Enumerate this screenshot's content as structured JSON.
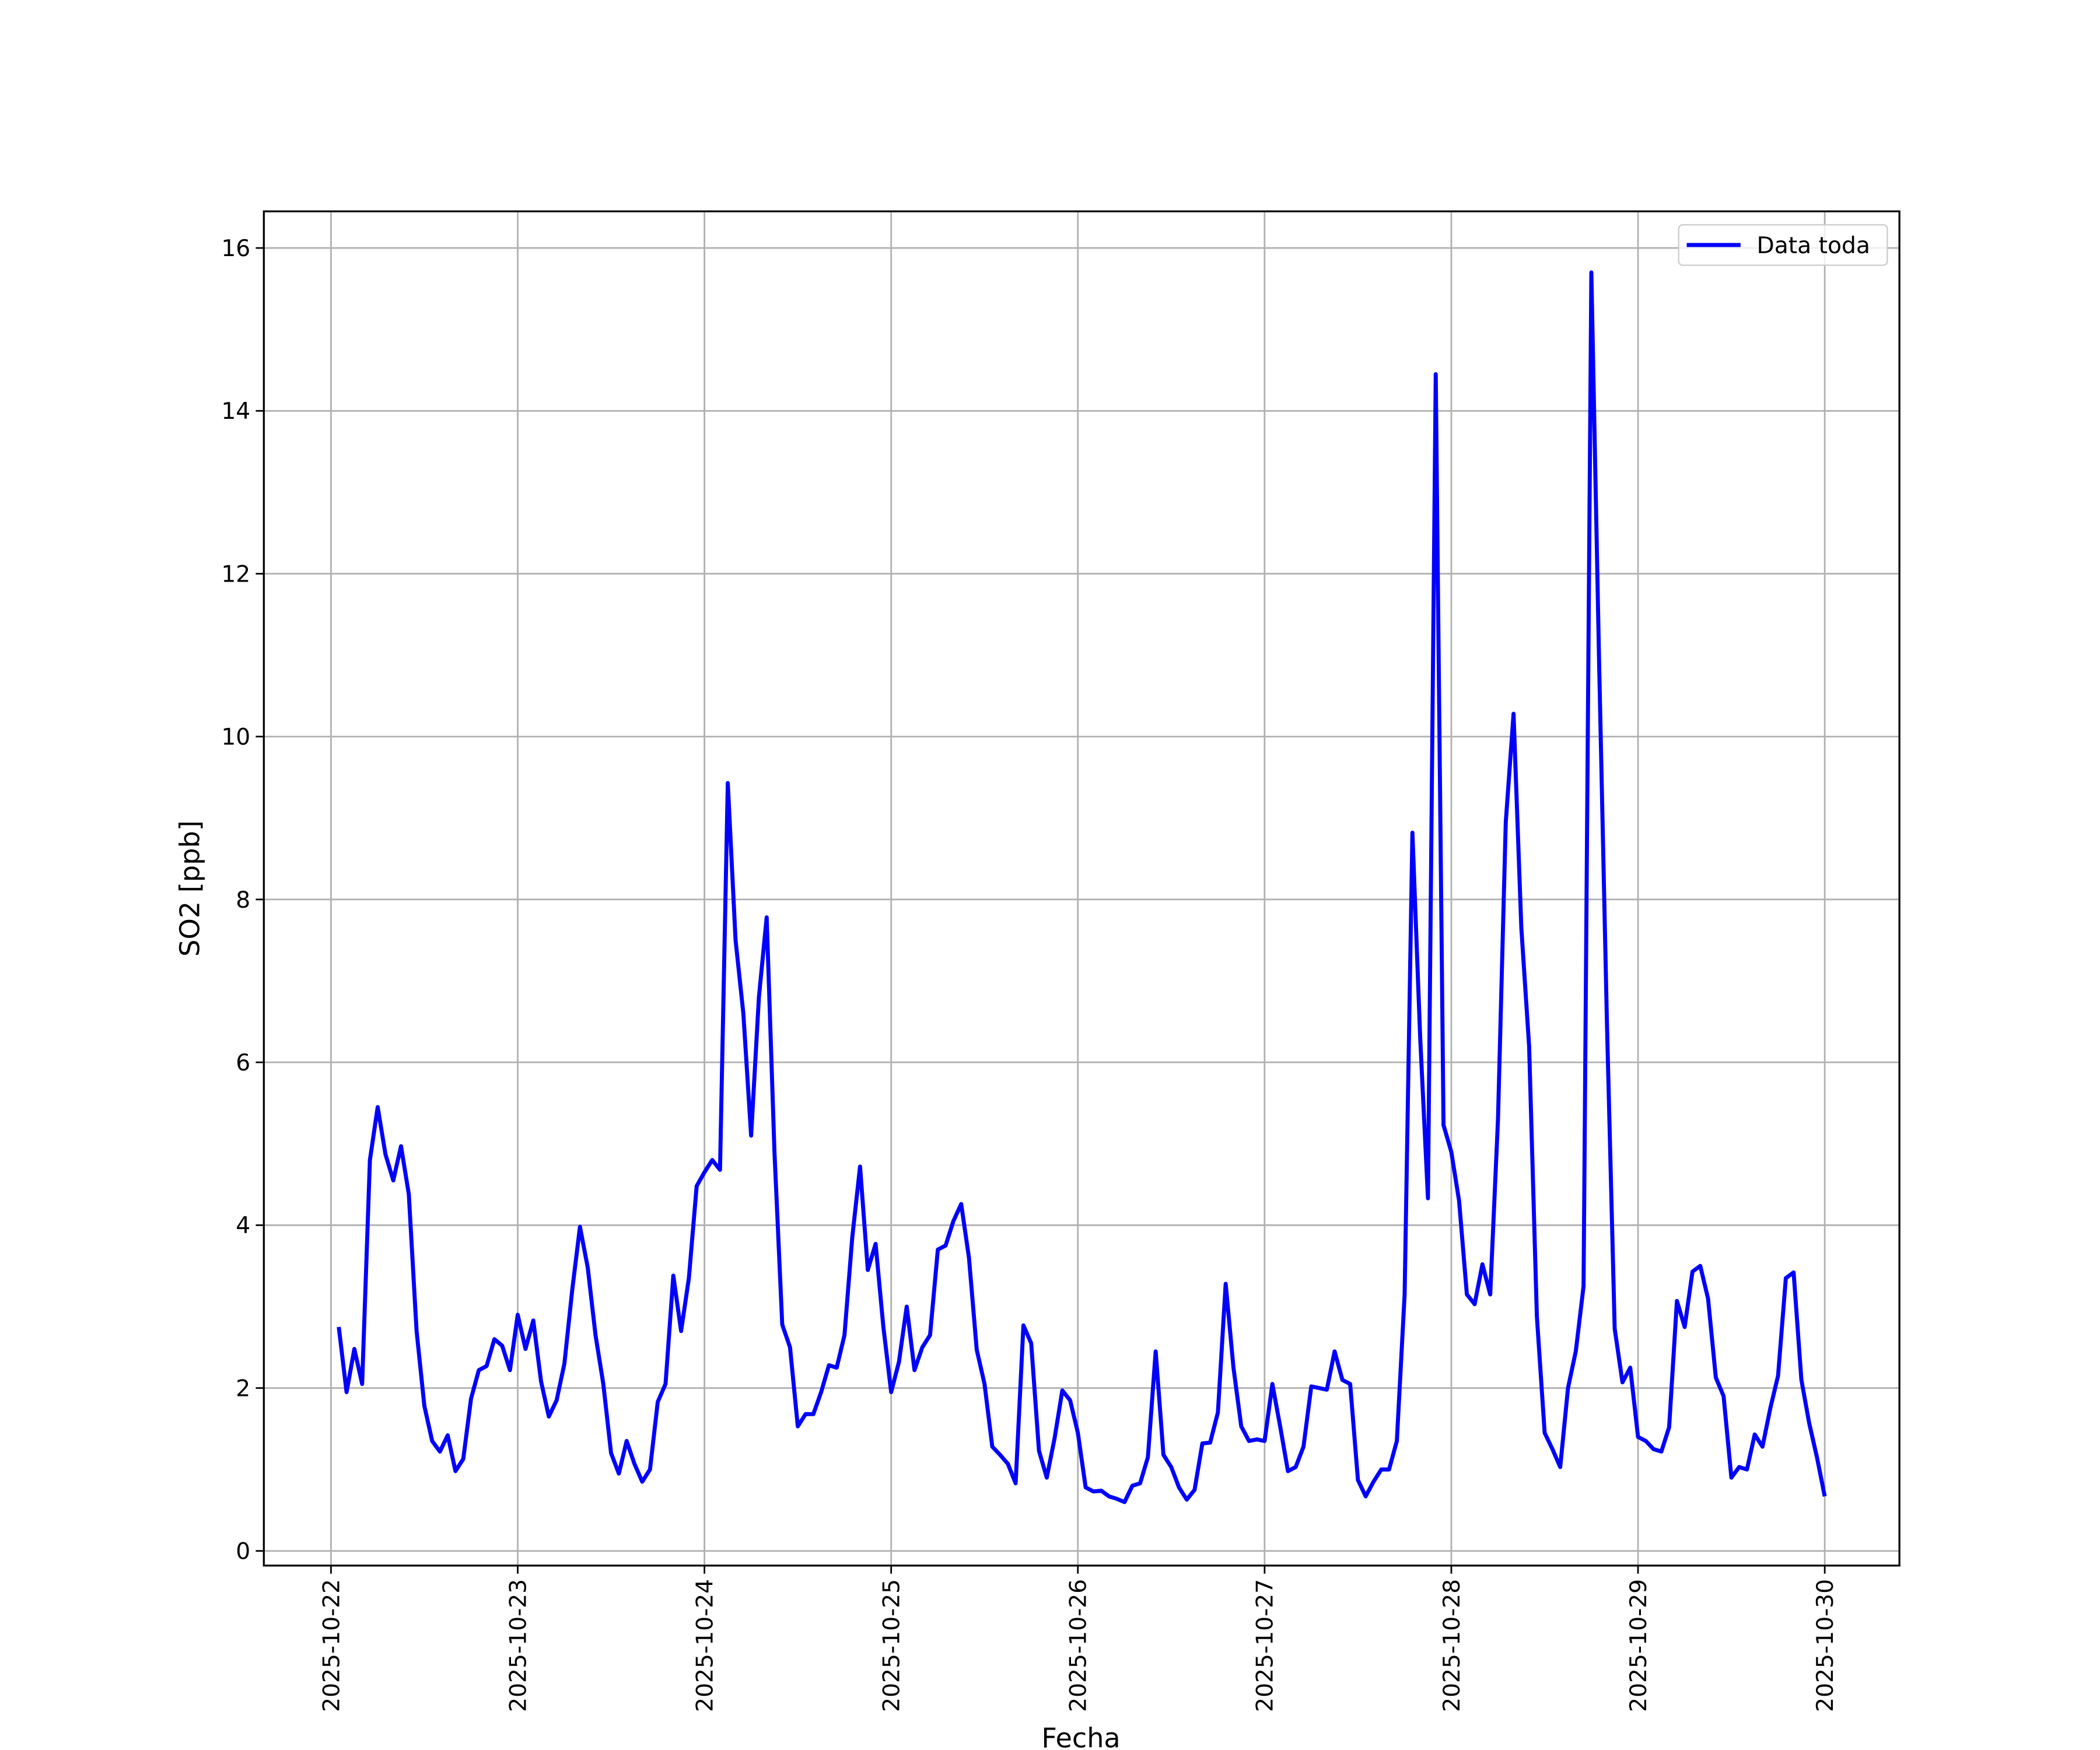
{
  "chart_data": {
    "type": "line",
    "xlabel": "Fecha",
    "ylabel": "SO2 [ppb]",
    "xlim": [
      "2025-10-21T15:22",
      "2025-10-30T09:36"
    ],
    "ylim": [
      -0.18,
      16.45
    ],
    "xticks": [
      "2025-10-22",
      "2025-10-23",
      "2025-10-24",
      "2025-10-25",
      "2025-10-26",
      "2025-10-27",
      "2025-10-28",
      "2025-10-29",
      "2025-10-30"
    ],
    "yticks": [
      0,
      2,
      4,
      6,
      8,
      10,
      12,
      14,
      16
    ],
    "grid": true,
    "legend": "upper right",
    "x": [
      "2025-10-22T01:00",
      "2025-10-22T02:00",
      "2025-10-22T03:00",
      "2025-10-22T04:00",
      "2025-10-22T05:00",
      "2025-10-22T06:00",
      "2025-10-22T07:00",
      "2025-10-22T08:00",
      "2025-10-22T09:00",
      "2025-10-22T10:00",
      "2025-10-22T11:00",
      "2025-10-22T12:00",
      "2025-10-22T13:00",
      "2025-10-22T14:00",
      "2025-10-22T15:00",
      "2025-10-22T16:00",
      "2025-10-22T17:00",
      "2025-10-22T18:00",
      "2025-10-22T19:00",
      "2025-10-22T20:00",
      "2025-10-22T21:00",
      "2025-10-22T22:00",
      "2025-10-22T23:00",
      "2025-10-23T00:00",
      "2025-10-23T01:00",
      "2025-10-23T02:00",
      "2025-10-23T03:00",
      "2025-10-23T04:00",
      "2025-10-23T05:00",
      "2025-10-23T06:00",
      "2025-10-23T07:00",
      "2025-10-23T08:00",
      "2025-10-23T09:00",
      "2025-10-23T10:00",
      "2025-10-23T11:00",
      "2025-10-23T12:00",
      "2025-10-23T13:00",
      "2025-10-23T14:00",
      "2025-10-23T15:00",
      "2025-10-23T16:00",
      "2025-10-23T17:00",
      "2025-10-23T18:00",
      "2025-10-23T19:00",
      "2025-10-23T20:00",
      "2025-10-23T21:00",
      "2025-10-23T22:00",
      "2025-10-23T23:00",
      "2025-10-24T00:00",
      "2025-10-24T01:00",
      "2025-10-24T02:00",
      "2025-10-24T03:00",
      "2025-10-24T04:00",
      "2025-10-24T05:00",
      "2025-10-24T06:00",
      "2025-10-24T07:00",
      "2025-10-24T08:00",
      "2025-10-24T09:00",
      "2025-10-24T10:00",
      "2025-10-24T11:00",
      "2025-10-24T12:00",
      "2025-10-24T13:00",
      "2025-10-24T14:00",
      "2025-10-24T15:00",
      "2025-10-24T16:00",
      "2025-10-24T17:00",
      "2025-10-24T18:00",
      "2025-10-24T19:00",
      "2025-10-24T20:00",
      "2025-10-24T21:00",
      "2025-10-24T22:00",
      "2025-10-24T23:00",
      "2025-10-25T00:00",
      "2025-10-25T01:00",
      "2025-10-25T02:00",
      "2025-10-25T03:00",
      "2025-10-25T04:00",
      "2025-10-25T05:00",
      "2025-10-25T06:00",
      "2025-10-25T07:00",
      "2025-10-25T08:00",
      "2025-10-25T09:00",
      "2025-10-25T10:00",
      "2025-10-25T11:00",
      "2025-10-25T12:00",
      "2025-10-25T13:00",
      "2025-10-25T14:00",
      "2025-10-25T15:00",
      "2025-10-25T16:00",
      "2025-10-25T17:00",
      "2025-10-25T18:00",
      "2025-10-25T19:00",
      "2025-10-25T20:00",
      "2025-10-25T21:00",
      "2025-10-25T22:00",
      "2025-10-25T23:00",
      "2025-10-26T00:00",
      "2025-10-26T01:00",
      "2025-10-26T02:00",
      "2025-10-26T03:00",
      "2025-10-26T04:00",
      "2025-10-26T05:00",
      "2025-10-26T06:00",
      "2025-10-26T07:00",
      "2025-10-26T08:00",
      "2025-10-26T09:00",
      "2025-10-26T10:00",
      "2025-10-26T11:00",
      "2025-10-26T12:00",
      "2025-10-26T13:00",
      "2025-10-26T14:00",
      "2025-10-26T15:00",
      "2025-10-26T16:00",
      "2025-10-26T17:00",
      "2025-10-26T18:00",
      "2025-10-26T19:00",
      "2025-10-26T20:00",
      "2025-10-26T21:00",
      "2025-10-26T22:00",
      "2025-10-26T23:00",
      "2025-10-27T00:00",
      "2025-10-27T01:00",
      "2025-10-27T02:00",
      "2025-10-27T03:00",
      "2025-10-27T04:00",
      "2025-10-27T05:00",
      "2025-10-27T06:00",
      "2025-10-27T07:00",
      "2025-10-27T08:00",
      "2025-10-27T09:00",
      "2025-10-27T10:00",
      "2025-10-27T11:00",
      "2025-10-27T12:00",
      "2025-10-27T13:00",
      "2025-10-27T14:00",
      "2025-10-27T15:00",
      "2025-10-27T16:00",
      "2025-10-27T17:00",
      "2025-10-27T18:00",
      "2025-10-27T19:00",
      "2025-10-27T20:00",
      "2025-10-27T21:00",
      "2025-10-27T22:00",
      "2025-10-27T23:00",
      "2025-10-28T00:00",
      "2025-10-28T01:00",
      "2025-10-28T02:00",
      "2025-10-28T03:00",
      "2025-10-28T04:00",
      "2025-10-28T05:00",
      "2025-10-28T06:00",
      "2025-10-28T07:00",
      "2025-10-28T08:00",
      "2025-10-28T09:00",
      "2025-10-28T10:00",
      "2025-10-28T11:00",
      "2025-10-28T12:00",
      "2025-10-28T13:00",
      "2025-10-28T14:00",
      "2025-10-28T15:00",
      "2025-10-28T16:00",
      "2025-10-28T17:00",
      "2025-10-28T18:00",
      "2025-10-28T19:00",
      "2025-10-28T20:00",
      "2025-10-28T21:00",
      "2025-10-28T22:00",
      "2025-10-28T23:00",
      "2025-10-29T00:00",
      "2025-10-29T01:00",
      "2025-10-29T02:00",
      "2025-10-29T03:00",
      "2025-10-29T04:00",
      "2025-10-29T05:00",
      "2025-10-29T06:00",
      "2025-10-29T07:00",
      "2025-10-29T08:00",
      "2025-10-29T09:00",
      "2025-10-29T10:00",
      "2025-10-29T11:00",
      "2025-10-29T12:00",
      "2025-10-29T13:00",
      "2025-10-29T14:00",
      "2025-10-29T15:00",
      "2025-10-29T16:00",
      "2025-10-29T17:00",
      "2025-10-29T18:00",
      "2025-10-29T19:00",
      "2025-10-29T20:00",
      "2025-10-29T21:00",
      "2025-10-29T22:00",
      "2025-10-29T23:00",
      "2025-10-30T00:00"
    ],
    "series": [
      {
        "name": "Data toda",
        "color": "#0000ff",
        "values": [
          2.75,
          1.95,
          2.48,
          2.05,
          4.8,
          5.45,
          4.87,
          4.55,
          4.97,
          4.38,
          2.7,
          1.78,
          1.35,
          1.22,
          1.42,
          0.98,
          1.13,
          1.87,
          2.22,
          2.27,
          2.6,
          2.52,
          2.22,
          2.9,
          2.48,
          2.83,
          2.08,
          1.65,
          1.85,
          2.3,
          3.2,
          3.98,
          3.48,
          2.65,
          2.05,
          1.2,
          0.95,
          1.35,
          1.07,
          0.85,
          1.0,
          1.83,
          2.05,
          3.38,
          2.7,
          3.35,
          4.48,
          4.65,
          4.8,
          4.68,
          9.43,
          7.5,
          6.6,
          5.1,
          6.8,
          7.78,
          4.9,
          2.78,
          2.5,
          1.53,
          1.68,
          1.68,
          1.95,
          2.28,
          2.25,
          2.65,
          3.85,
          4.72,
          3.45,
          3.77,
          2.75,
          1.95,
          2.32,
          3.0,
          2.22,
          2.5,
          2.65,
          3.7,
          3.75,
          4.05,
          4.26,
          3.6,
          2.47,
          2.05,
          1.28,
          1.18,
          1.07,
          0.83,
          2.77,
          2.55,
          1.23,
          0.9,
          1.38,
          1.97,
          1.85,
          1.45,
          0.78,
          0.73,
          0.74,
          0.67,
          0.64,
          0.6,
          0.8,
          0.83,
          1.15,
          2.45,
          1.18,
          1.03,
          0.78,
          0.63,
          0.75,
          1.32,
          1.33,
          1.7,
          3.28,
          2.25,
          1.53,
          1.35,
          1.37,
          1.35,
          2.05,
          1.53,
          0.98,
          1.03,
          1.28,
          2.02,
          2.0,
          1.98,
          2.45,
          2.1,
          2.05,
          0.87,
          0.67,
          0.85,
          1.0,
          1.0,
          1.35,
          3.15,
          8.82,
          6.3,
          4.33,
          14.45,
          5.23,
          4.9,
          4.3,
          3.15,
          3.03,
          3.52,
          3.15,
          5.3,
          8.95,
          10.28,
          7.65,
          6.2,
          2.88,
          1.45,
          1.25,
          1.03,
          2.0,
          2.45,
          3.25,
          15.7,
          10.9,
          6.5,
          2.73,
          2.07,
          2.25,
          1.4,
          1.35,
          1.25,
          1.22,
          1.52,
          3.07,
          2.75,
          3.43,
          3.5,
          3.1,
          2.13,
          1.9,
          0.9,
          1.03,
          1.0,
          1.43,
          1.28,
          1.75,
          2.15,
          3.35,
          3.42,
          2.1,
          1.57,
          1.15,
          0.67
        ]
      }
    ]
  }
}
